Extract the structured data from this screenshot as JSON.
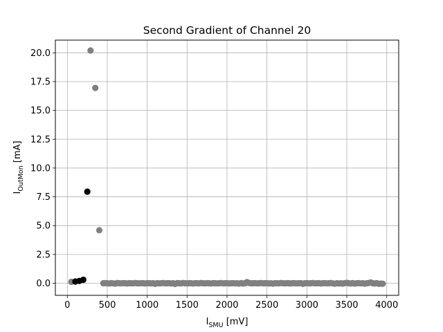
{
  "chart_data": {
    "type": "scatter",
    "title": "Second Gradient of Channel 20",
    "xlabel": {
      "base": "I",
      "sub": "SMU",
      "suffix": " [mV]"
    },
    "ylabel": {
      "base": "I",
      "sub": "OutMon",
      "suffix": " [mA]"
    },
    "xlim": [
      -150,
      4150
    ],
    "ylim": [
      -1.05,
      21.1
    ],
    "x_ticks": [
      0,
      500,
      1000,
      1500,
      2000,
      2500,
      3000,
      3500,
      4000
    ],
    "x_tick_labels": [
      "0",
      "500",
      "1000",
      "1500",
      "2000",
      "2500",
      "3000",
      "3500",
      "4000"
    ],
    "y_ticks": [
      0,
      2.5,
      5,
      7.5,
      10,
      12.5,
      15,
      17.5,
      20
    ],
    "y_tick_labels": [
      "0.0",
      "2.5",
      "5.0",
      "7.5",
      "10.0",
      "12.5",
      "15.0",
      "17.5",
      "20.0"
    ],
    "grid": true,
    "colors": {
      "grey": "#808080",
      "black": "#000000",
      "grid": "#b0b0b0"
    },
    "series": [
      {
        "color": "#808080",
        "points": [
          [
            50,
            0.12
          ],
          [
            290,
            20.2
          ],
          [
            350,
            16.95
          ],
          [
            400,
            4.6
          ],
          [
            450,
            0.0
          ],
          [
            475,
            0.01
          ],
          [
            500,
            0.0
          ],
          [
            525,
            -0.02
          ],
          [
            550,
            0.01
          ],
          [
            575,
            -0.01
          ],
          [
            600,
            -0.03
          ],
          [
            625,
            0.02
          ],
          [
            650,
            0.0
          ],
          [
            675,
            -0.01
          ],
          [
            700,
            0.01
          ],
          [
            725,
            0.0
          ],
          [
            750,
            -0.02
          ],
          [
            775,
            0.01
          ],
          [
            800,
            0.0
          ],
          [
            825,
            -0.01
          ],
          [
            850,
            0.02
          ],
          [
            875,
            0.0
          ],
          [
            900,
            -0.01
          ],
          [
            925,
            0.01
          ],
          [
            950,
            0.0
          ],
          [
            975,
            -0.02
          ],
          [
            1000,
            0.01
          ],
          [
            1025,
            0.0
          ],
          [
            1050,
            -0.01
          ],
          [
            1075,
            0.0
          ],
          [
            1100,
            -0.05
          ],
          [
            1125,
            0.01
          ],
          [
            1150,
            -0.01
          ],
          [
            1175,
            0.0
          ],
          [
            1200,
            0.02
          ],
          [
            1225,
            -0.01
          ],
          [
            1250,
            0.0
          ],
          [
            1275,
            0.01
          ],
          [
            1300,
            -0.02
          ],
          [
            1325,
            0.0
          ],
          [
            1350,
            -0.06
          ],
          [
            1375,
            0.01
          ],
          [
            1400,
            0.0
          ],
          [
            1425,
            -0.01
          ],
          [
            1450,
            0.02
          ],
          [
            1475,
            0.0
          ],
          [
            1500,
            -0.01
          ],
          [
            1525,
            0.01
          ],
          [
            1550,
            0.0
          ],
          [
            1575,
            -0.02
          ],
          [
            1600,
            0.01
          ],
          [
            1625,
            0.0
          ],
          [
            1650,
            -0.01
          ],
          [
            1675,
            0.02
          ],
          [
            1700,
            0.0
          ],
          [
            1725,
            -0.01
          ],
          [
            1750,
            0.01
          ],
          [
            1775,
            0.0
          ],
          [
            1800,
            -0.02
          ],
          [
            1825,
            0.01
          ],
          [
            1850,
            0.0
          ],
          [
            1875,
            -0.01
          ],
          [
            1900,
            0.0
          ],
          [
            1925,
            0.02
          ],
          [
            1950,
            -0.01
          ],
          [
            1975,
            0.0
          ],
          [
            2000,
            0.01
          ],
          [
            2025,
            -0.02
          ],
          [
            2050,
            0.0
          ],
          [
            2075,
            0.01
          ],
          [
            2100,
            -0.01
          ],
          [
            2125,
            0.0
          ],
          [
            2150,
            -0.03
          ],
          [
            2175,
            0.01
          ],
          [
            2200,
            -0.02
          ],
          [
            2225,
            0.0
          ],
          [
            2250,
            0.1
          ],
          [
            2275,
            0.03
          ],
          [
            2300,
            -0.01
          ],
          [
            2325,
            0.0
          ],
          [
            2350,
            0.01
          ],
          [
            2375,
            -0.01
          ],
          [
            2400,
            0.0
          ],
          [
            2425,
            0.02
          ],
          [
            2450,
            -0.01
          ],
          [
            2475,
            0.0
          ],
          [
            2500,
            0.01
          ],
          [
            2525,
            -0.02
          ],
          [
            2550,
            0.0
          ],
          [
            2575,
            -0.04
          ],
          [
            2600,
            0.01
          ],
          [
            2625,
            0.0
          ],
          [
            2650,
            -0.01
          ],
          [
            2675,
            0.02
          ],
          [
            2700,
            0.0
          ],
          [
            2725,
            -0.01
          ],
          [
            2750,
            0.01
          ],
          [
            2775,
            0.0
          ],
          [
            2800,
            -0.02
          ],
          [
            2825,
            0.01
          ],
          [
            2850,
            0.0
          ],
          [
            2875,
            -0.01
          ],
          [
            2900,
            0.0
          ],
          [
            2925,
            0.01
          ],
          [
            2950,
            -0.05
          ],
          [
            2975,
            0.0
          ],
          [
            3000,
            0.01
          ],
          [
            3025,
            -0.01
          ],
          [
            3050,
            0.0
          ],
          [
            3075,
            0.02
          ],
          [
            3100,
            -0.01
          ],
          [
            3125,
            0.0
          ],
          [
            3150,
            0.01
          ],
          [
            3175,
            -0.02
          ],
          [
            3200,
            0.0
          ],
          [
            3225,
            0.01
          ],
          [
            3250,
            -0.01
          ],
          [
            3275,
            0.0
          ],
          [
            3300,
            0.02
          ],
          [
            3325,
            -0.01
          ],
          [
            3350,
            -0.04
          ],
          [
            3375,
            0.0
          ],
          [
            3400,
            -0.02
          ],
          [
            3425,
            0.0
          ],
          [
            3450,
            -0.03
          ],
          [
            3475,
            0.01
          ],
          [
            3500,
            0.03
          ],
          [
            3525,
            0.0
          ],
          [
            3550,
            -0.02
          ],
          [
            3575,
            0.01
          ],
          [
            3600,
            -0.03
          ],
          [
            3625,
            0.0
          ],
          [
            3650,
            0.01
          ],
          [
            3675,
            -0.01
          ],
          [
            3700,
            0.0
          ],
          [
            3725,
            -0.04
          ],
          [
            3750,
            0.0
          ],
          [
            3775,
            0.02
          ],
          [
            3800,
            0.07
          ],
          [
            3825,
            0.0
          ],
          [
            3850,
            -0.02
          ],
          [
            3875,
            0.01
          ],
          [
            3900,
            -0.05
          ],
          [
            3925,
            -0.03
          ],
          [
            3950,
            -0.04
          ]
        ]
      },
      {
        "color": "#000000",
        "points": [
          [
            100,
            0.15
          ],
          [
            150,
            0.2
          ],
          [
            200,
            0.3
          ],
          [
            250,
            7.95
          ]
        ]
      }
    ]
  }
}
